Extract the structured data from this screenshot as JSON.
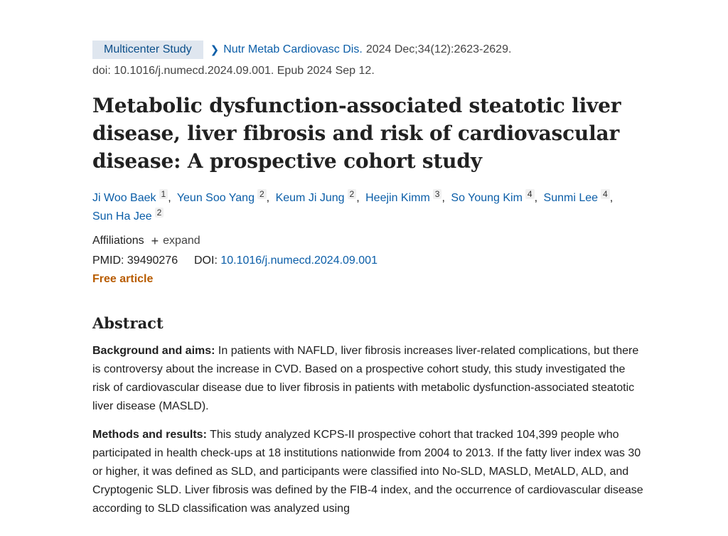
{
  "meta": {
    "publication_type": "Multicenter Study",
    "journal": "Nutr Metab Cardiovasc Dis.",
    "citation": "2024 Dec;34(12):2623-2629.",
    "doi_line": "doi: 10.1016/j.numecd.2024.09.001. Epub 2024 Sep 12."
  },
  "title": "Metabolic dysfunction-associated steatotic liver disease, liver fibrosis and risk of cardiovascular disease: A prospective cohort study",
  "authors": [
    {
      "name": "Ji Woo Baek",
      "aff": "1"
    },
    {
      "name": "Yeun Soo Yang",
      "aff": "2"
    },
    {
      "name": "Keum Ji Jung",
      "aff": "2"
    },
    {
      "name": "Heejin Kimm",
      "aff": "3"
    },
    {
      "name": "So Young Kim",
      "aff": "4"
    },
    {
      "name": "Sunmi Lee",
      "aff": "4"
    },
    {
      "name": "Sun Ha Jee",
      "aff": "2"
    }
  ],
  "affiliations": {
    "label": "Affiliations",
    "expand_label": "expand"
  },
  "ids": {
    "pmid_label": "PMID:",
    "pmid": "39490276",
    "doi_label": "DOI:",
    "doi": "10.1016/j.numecd.2024.09.001"
  },
  "free_article": "Free article",
  "abstract": {
    "heading": "Abstract",
    "sections": [
      {
        "label": "Background and aims:",
        "text": " In patients with NAFLD, liver fibrosis increases liver-related complications, but there is controversy about the increase in CVD. Based on a prospective cohort study, this study investigated the risk of cardiovascular disease due to liver fibrosis in patients with metabolic dysfunction-associated steatotic liver disease (MASLD)."
      },
      {
        "label": "Methods and results:",
        "text": " This study analyzed KCPS-II prospective cohort that tracked 104,399 people who participated in health check-ups at 18 institutions nationwide from 2004 to 2013. If the fatty liver index was 30 or higher, it was defined as SLD, and participants were classified into No-SLD, MASLD, MetALD, ALD, and Cryptogenic SLD. Liver fibrosis was defined by the FIB-4 index, and the occurrence of cardiovascular disease according to SLD classification was analyzed using"
      }
    ]
  }
}
